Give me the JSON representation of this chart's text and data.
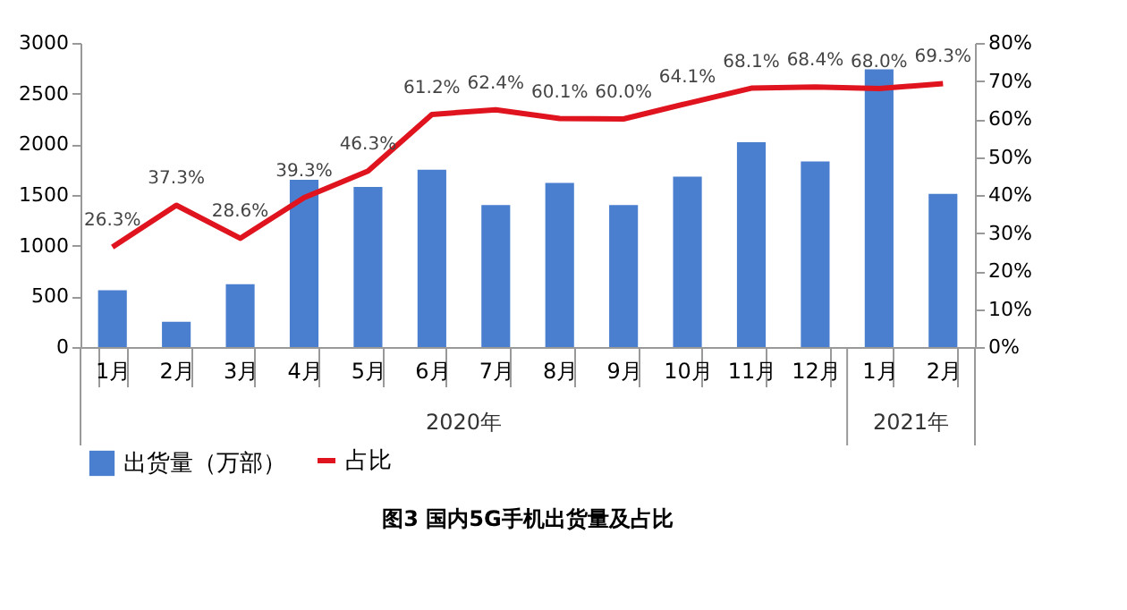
{
  "chart_data": {
    "type": "bar",
    "title": "图3  国内5G手机出货量及占比",
    "categories": [
      "1月",
      "2月",
      "3月",
      "4月",
      "5月",
      "6月",
      "7月",
      "8月",
      "9月",
      "10月",
      "11月",
      "12月",
      "1月",
      "2月"
    ],
    "series": [
      {
        "name": "出货量（万部）",
        "color": "#4a7fcf",
        "values": [
          560,
          250,
          620,
          1650,
          1580,
          1750,
          1400,
          1620,
          1400,
          1680,
          2020,
          1830,
          2740,
          1510
        ]
      },
      {
        "name": "占比",
        "type": "line",
        "axis": "y2",
        "color": "#e0141e",
        "values": [
          26.3,
          37.3,
          28.6,
          39.3,
          46.3,
          61.2,
          62.4,
          60.1,
          60.0,
          64.1,
          68.1,
          68.4,
          68.0,
          69.3
        ],
        "value_labels": [
          "26.3%",
          "37.3%",
          "28.6%",
          "39.3%",
          "46.3%",
          "61.2%",
          "62.4%",
          "60.1%",
          "60.0%",
          "64.1%",
          "68.1%",
          "68.4%",
          "68.0%",
          "69.3%"
        ]
      }
    ],
    "annotations": [
      "2020年",
      "2021年"
    ],
    "ylim": [
      0,
      3000
    ],
    "yticks": [
      0,
      500,
      1000,
      1500,
      2000,
      2500,
      3000
    ],
    "y2lim": [
      0,
      80
    ],
    "y2ticks": [
      {
        "value": 0,
        "label": "0%"
      },
      {
        "value": 10,
        "label": "10%"
      },
      {
        "value": 20,
        "label": "20%"
      },
      {
        "value": 30,
        "label": "30%"
      },
      {
        "value": 40,
        "label": "40%"
      },
      {
        "value": 50,
        "label": "50%"
      },
      {
        "value": 60,
        "label": "60%"
      },
      {
        "value": 70,
        "label": "70%"
      },
      {
        "value": 80,
        "label": "80%"
      }
    ],
    "grid": false,
    "legend": "bottom"
  }
}
